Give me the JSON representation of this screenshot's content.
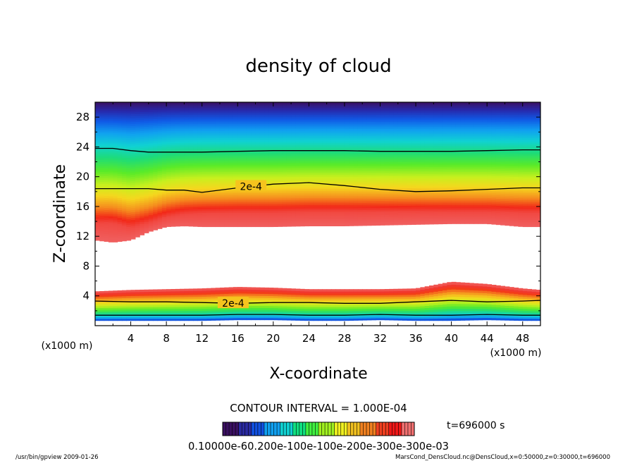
{
  "chart_data": {
    "type": "heatmap",
    "title": "density of cloud",
    "xlabel": "X-coordinate",
    "ylabel": "Z-coordinate",
    "x_units": "(x1000 m)",
    "y_units": "(x1000 m)",
    "xlim": [
      0,
      50
    ],
    "ylim": [
      0,
      30
    ],
    "xticks": [
      "4",
      "8",
      "12",
      "16",
      "20",
      "24",
      "28",
      "32",
      "36",
      "40",
      "44",
      "48"
    ],
    "yticks": [
      "4",
      "8",
      "12",
      "16",
      "20",
      "24",
      "28"
    ],
    "contour_interval_text": "CONTOUR INTERVAL = 1.000E-04",
    "contour_labels": [
      "2e-4",
      "2e-4"
    ],
    "colorbar_labels_text": "0.10000e-60.200e-100e-100e-200e-300e-300e-03",
    "colorbar_colors": [
      "#3a1060",
      "#2a2aa0",
      "#1050e0",
      "#10a0f0",
      "#10d0d0",
      "#10e080",
      "#40f040",
      "#a0f020",
      "#f0f020",
      "#f0c020",
      "#f08020",
      "#f04020",
      "#f01818",
      "#f07070"
    ],
    "time_text": "t=696000 s",
    "upper_layer": {
      "x": [
        0,
        2,
        4,
        6,
        8,
        10,
        12,
        16,
        20,
        24,
        28,
        32,
        36,
        40,
        44,
        48,
        50
      ],
      "base_km": [
        11.5,
        11.2,
        11.5,
        12.6,
        13.3,
        13.4,
        13.3,
        13.3,
        13.3,
        13.4,
        13.4,
        13.5,
        13.6,
        13.7,
        13.7,
        13.3,
        13.3
      ],
      "contour_2e4_km": [
        18.4,
        18.4,
        18.4,
        18.4,
        18.2,
        18.2,
        17.9,
        18.5,
        19.0,
        19.2,
        18.8,
        18.3,
        18.0,
        18.1,
        18.3,
        18.5,
        18.5
      ],
      "contour_1e4_km": [
        23.8,
        23.8,
        23.5,
        23.3,
        23.3,
        23.3,
        23.3,
        23.4,
        23.5,
        23.5,
        23.5,
        23.4,
        23.4,
        23.4,
        23.5,
        23.6,
        23.6
      ],
      "max_density_altitude_km": [
        13.8,
        13.8,
        13.2,
        13.8,
        14.6,
        15.0,
        15.1,
        15.2,
        15.2,
        15.3,
        15.3,
        15.3,
        15.3,
        15.3,
        15.3,
        15.2,
        15.2
      ]
    },
    "lower_layer": {
      "x": [
        0,
        4,
        8,
        12,
        16,
        20,
        24,
        28,
        32,
        36,
        40,
        44,
        48,
        50
      ],
      "top_km": [
        4.6,
        4.8,
        4.9,
        5.0,
        5.2,
        5.1,
        4.9,
        4.9,
        4.9,
        5.0,
        5.9,
        5.6,
        5.0,
        4.8
      ],
      "contour_2e4_km": [
        3.3,
        3.2,
        3.2,
        3.1,
        3.0,
        3.1,
        3.1,
        3.0,
        3.0,
        3.2,
        3.4,
        3.2,
        3.3,
        3.4
      ],
      "base_km": [
        0.7,
        0.7,
        0.7,
        0.7,
        0.8,
        0.8,
        0.7,
        0.7,
        0.8,
        0.7,
        0.7,
        0.8,
        0.7,
        0.7
      ]
    }
  },
  "footer": {
    "left": "/usr/bin/gpview  2009-01-26",
    "right": "MarsCond_DensCloud.nc@DensCloud,x=0:50000,z=0:30000,t=696000"
  }
}
